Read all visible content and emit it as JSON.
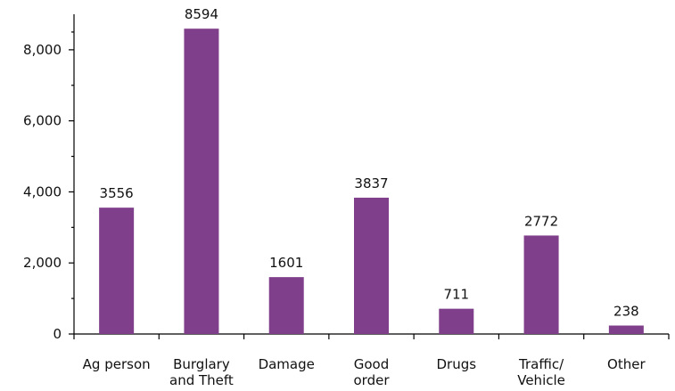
{
  "chart_data": {
    "type": "bar",
    "categories": [
      [
        "Ag person"
      ],
      [
        "Burglary",
        "and Theft"
      ],
      [
        "Damage"
      ],
      [
        "Good",
        "order"
      ],
      [
        "Drugs"
      ],
      [
        "Traffic/",
        "Vehicle"
      ],
      [
        "Other"
      ]
    ],
    "values": [
      3556,
      8594,
      1601,
      3837,
      711,
      2772,
      238
    ],
    "value_labels": [
      "3556",
      "8594",
      "1601",
      "3837",
      "711",
      "2772",
      "238"
    ],
    "y_ticks": [
      0,
      2000,
      4000,
      6000,
      8000
    ],
    "y_tick_labels": [
      "0",
      "2,000",
      "4,000",
      "6,000",
      "8,000"
    ],
    "ylim": [
      0,
      9000
    ],
    "title": "",
    "xlabel": "",
    "ylabel": "",
    "grid": false,
    "bar_color": "#7f3f8a"
  }
}
